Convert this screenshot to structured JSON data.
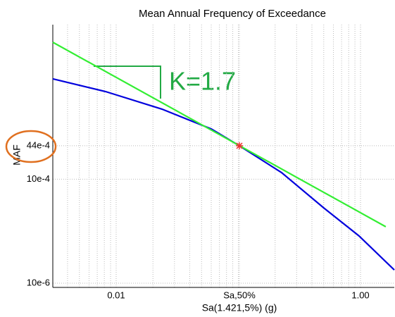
{
  "chart_data": {
    "type": "line",
    "title": "Mean Annual Frequency of Exceedance",
    "xlabel": "Sa(1.421,5%) (g)",
    "ylabel": "MAF",
    "xscale": "log",
    "yscale": "log",
    "grid": true,
    "xlim": [
      0.00303,
      1.89
    ],
    "ylim": [
      8.3e-06,
      0.94
    ],
    "xticks": [
      {
        "value": 0.01,
        "label": "0.01"
      },
      {
        "value": 0.102,
        "label": "Sa,50%"
      },
      {
        "value": 1,
        "label": "1.00"
      }
    ],
    "yticks": [
      {
        "value": 1e-05,
        "label": "10e-6"
      },
      {
        "value": 0.001,
        "label": "10e-4"
      },
      {
        "value": 0.0044,
        "label": "44e-4"
      }
    ],
    "series": [
      {
        "color": "#0000dd",
        "x": [
          0.00303,
          0.0082,
          0.0237,
          0.06,
          0.102,
          0.226,
          0.501,
          0.973,
          1.89
        ],
        "values": [
          0.0851,
          0.0485,
          0.0223,
          0.0093,
          0.0044,
          0.00134,
          0.00028,
          8.1e-05,
          1.8e-05
        ]
      },
      {
        "color": "#33ee33",
        "x": [
          0.00303,
          1.61
        ],
        "values": [
          0.431,
          0.000122
        ]
      }
    ],
    "point": {
      "x": 0.102,
      "y": 0.0044,
      "color": "#ee3333"
    },
    "annotation": "K=1.7"
  }
}
